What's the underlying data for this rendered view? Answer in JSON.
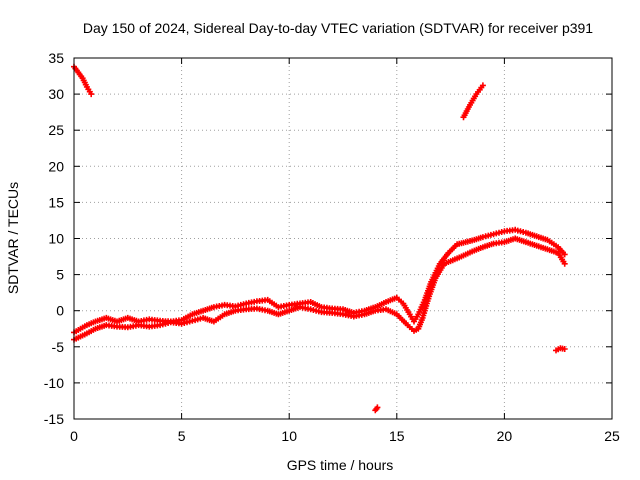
{
  "chart_data": {
    "type": "scatter",
    "title": "Day 150 of 2024, Sidereal Day-to-day VTEC variation (SDTVAR) for receiver p391",
    "xlabel": "GPS time / hours",
    "ylabel": "SDTVAR / TECUs",
    "xlim": [
      0,
      25
    ],
    "ylim": [
      -15,
      35
    ],
    "xticks": [
      0,
      5,
      10,
      15,
      20,
      25
    ],
    "yticks": [
      -15,
      -10,
      -5,
      0,
      5,
      10,
      15,
      20,
      25,
      30,
      35
    ],
    "grid": true,
    "series": [
      {
        "name": "SDTVAR",
        "color": "#ff0000",
        "marker": "plus",
        "tracks": [
          [
            [
              0.0,
              33.8
            ],
            [
              0.2,
              33.0
            ],
            [
              0.4,
              32.2
            ],
            [
              0.6,
              31.0
            ],
            [
              0.8,
              30.0
            ]
          ],
          [
            [
              0.0,
              -3.0
            ],
            [
              0.3,
              -2.5
            ],
            [
              0.6,
              -2.0
            ],
            [
              1.0,
              -1.5
            ],
            [
              1.5,
              -1.0
            ],
            [
              2.0,
              -1.5
            ],
            [
              2.5,
              -1.0
            ],
            [
              3.0,
              -1.5
            ],
            [
              3.5,
              -1.2
            ],
            [
              4.0,
              -1.4
            ],
            [
              4.5,
              -1.5
            ],
            [
              5.0,
              -1.3
            ],
            [
              5.5,
              -0.5
            ],
            [
              6.0,
              0.0
            ],
            [
              6.5,
              0.5
            ],
            [
              7.0,
              0.8
            ],
            [
              7.5,
              0.6
            ],
            [
              8.0,
              1.0
            ],
            [
              8.5,
              1.3
            ],
            [
              9.0,
              1.5
            ],
            [
              9.5,
              0.5
            ],
            [
              10.0,
              0.8
            ],
            [
              10.5,
              1.0
            ],
            [
              11.0,
              1.2
            ],
            [
              11.5,
              0.5
            ],
            [
              12.0,
              0.3
            ],
            [
              12.5,
              0.2
            ],
            [
              13.0,
              -0.3
            ],
            [
              13.5,
              0.0
            ],
            [
              14.0,
              0.5
            ],
            [
              14.5,
              1.2
            ],
            [
              15.0,
              1.8
            ],
            [
              15.3,
              1.0
            ],
            [
              15.6,
              -0.5
            ],
            [
              15.8,
              -1.5
            ],
            [
              16.0,
              -0.5
            ],
            [
              16.3,
              1.5
            ],
            [
              16.6,
              4.0
            ],
            [
              17.0,
              6.5
            ],
            [
              17.4,
              8.0
            ],
            [
              17.8,
              9.2
            ],
            [
              18.2,
              9.5
            ],
            [
              18.6,
              9.8
            ],
            [
              19.0,
              10.2
            ],
            [
              19.5,
              10.6
            ],
            [
              20.0,
              11.0
            ],
            [
              20.5,
              11.2
            ],
            [
              21.0,
              10.8
            ],
            [
              21.5,
              10.3
            ],
            [
              22.0,
              9.8
            ],
            [
              22.5,
              8.8
            ],
            [
              22.8,
              7.8
            ]
          ],
          [
            [
              0.0,
              -4.0
            ],
            [
              0.5,
              -3.3
            ],
            [
              1.0,
              -2.5
            ],
            [
              1.5,
              -2.0
            ],
            [
              2.0,
              -2.2
            ],
            [
              2.5,
              -2.3
            ],
            [
              3.0,
              -2.0
            ],
            [
              3.5,
              -2.2
            ],
            [
              4.0,
              -2.0
            ],
            [
              4.5,
              -1.6
            ],
            [
              5.0,
              -1.8
            ],
            [
              5.5,
              -1.4
            ],
            [
              6.0,
              -1.0
            ],
            [
              6.5,
              -1.5
            ],
            [
              7.0,
              -0.5
            ],
            [
              7.5,
              0.0
            ],
            [
              8.0,
              0.2
            ],
            [
              8.5,
              0.3
            ],
            [
              9.0,
              0.0
            ],
            [
              9.5,
              -0.5
            ],
            [
              10.0,
              0.0
            ],
            [
              10.5,
              0.5
            ],
            [
              11.0,
              0.2
            ],
            [
              11.5,
              -0.2
            ],
            [
              12.0,
              -0.3
            ],
            [
              12.5,
              -0.5
            ],
            [
              13.0,
              -0.8
            ],
            [
              13.5,
              -0.5
            ],
            [
              14.0,
              0.0
            ],
            [
              14.5,
              0.2
            ],
            [
              15.0,
              -0.5
            ],
            [
              15.5,
              -2.0
            ],
            [
              15.8,
              -2.8
            ],
            [
              16.0,
              -2.5
            ],
            [
              16.2,
              -1.0
            ],
            [
              16.5,
              2.0
            ],
            [
              16.8,
              4.5
            ],
            [
              17.2,
              6.5
            ],
            [
              17.6,
              7.0
            ],
            [
              18.0,
              7.5
            ],
            [
              18.5,
              8.2
            ],
            [
              19.0,
              8.8
            ],
            [
              19.5,
              9.3
            ],
            [
              20.0,
              9.5
            ],
            [
              20.5,
              10.0
            ],
            [
              21.0,
              9.5
            ],
            [
              21.5,
              9.0
            ],
            [
              22.0,
              8.5
            ],
            [
              22.5,
              8.0
            ],
            [
              22.8,
              6.5
            ]
          ],
          [
            [
              18.1,
              26.8
            ],
            [
              18.4,
              28.5
            ],
            [
              18.7,
              30.0
            ],
            [
              19.0,
              31.2
            ]
          ],
          [
            [
              14.0,
              -13.8
            ],
            [
              14.1,
              -13.4
            ]
          ],
          [
            [
              22.4,
              -5.5
            ],
            [
              22.6,
              -5.2
            ],
            [
              22.8,
              -5.3
            ]
          ]
        ]
      }
    ]
  }
}
